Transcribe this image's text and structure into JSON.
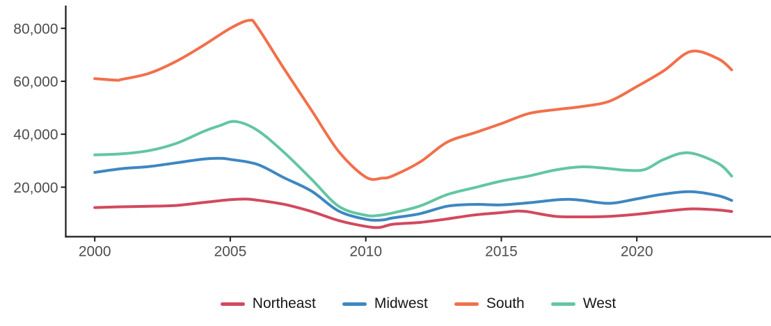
{
  "chart_data": {
    "type": "line",
    "title": "",
    "xlabel": "",
    "ylabel": "",
    "grid": false,
    "legend_position": "bottom",
    "xlim": [
      1998.93,
      2024.95
    ],
    "ylim": [
      1310,
      88590
    ],
    "x_ticks": {
      "values": [
        2000,
        2005,
        2010,
        2015,
        2020
      ],
      "labels": [
        "2000",
        "2005",
        "2010",
        "2015",
        "2020"
      ]
    },
    "y_ticks": {
      "values": [
        20000,
        40000,
        60000,
        80000
      ],
      "labels": [
        "20,000",
        "40,000",
        "60,000",
        "80,000"
      ]
    },
    "axis_color": "#1a1a1a",
    "tick_label_color": "#4d4d4d",
    "series": [
      {
        "name": "Northeast",
        "color": "#d2495e",
        "points": [
          [
            2000,
            12300
          ],
          [
            2001,
            12600
          ],
          [
            2002,
            12800
          ],
          [
            2003,
            13100
          ],
          [
            2004,
            14200
          ],
          [
            2005,
            15300
          ],
          [
            2005.6,
            15500
          ],
          [
            2006,
            15100
          ],
          [
            2007,
            13500
          ],
          [
            2008,
            10800
          ],
          [
            2009,
            7400
          ],
          [
            2010,
            5200
          ],
          [
            2010.5,
            4800
          ],
          [
            2011,
            6000
          ],
          [
            2012,
            6700
          ],
          [
            2013,
            8000
          ],
          [
            2014,
            9500
          ],
          [
            2015,
            10400
          ],
          [
            2015.6,
            11000
          ],
          [
            2016,
            10700
          ],
          [
            2017,
            9000
          ],
          [
            2018,
            8800
          ],
          [
            2019,
            9000
          ],
          [
            2020,
            9800
          ],
          [
            2021,
            10900
          ],
          [
            2022,
            11800
          ],
          [
            2023,
            11400
          ],
          [
            2023.5,
            10800
          ]
        ]
      },
      {
        "name": "Midwest",
        "color": "#3d87c1",
        "points": [
          [
            2000,
            25600
          ],
          [
            2001,
            27000
          ],
          [
            2002,
            27800
          ],
          [
            2003,
            29200
          ],
          [
            2004,
            30600
          ],
          [
            2004.6,
            30900
          ],
          [
            2005,
            30500
          ],
          [
            2006,
            28600
          ],
          [
            2007,
            23500
          ],
          [
            2008,
            18500
          ],
          [
            2009,
            11000
          ],
          [
            2010,
            7900
          ],
          [
            2010.6,
            7600
          ],
          [
            2011,
            8400
          ],
          [
            2012,
            10000
          ],
          [
            2013,
            12800
          ],
          [
            2014,
            13500
          ],
          [
            2015,
            13300
          ],
          [
            2016,
            14100
          ],
          [
            2017,
            15200
          ],
          [
            2017.5,
            15400
          ],
          [
            2018,
            15000
          ],
          [
            2019,
            13900
          ],
          [
            2020,
            15600
          ],
          [
            2021,
            17400
          ],
          [
            2022,
            18300
          ],
          [
            2023,
            16800
          ],
          [
            2023.5,
            15000
          ]
        ]
      },
      {
        "name": "South",
        "color": "#f1704a",
        "points": [
          [
            2000,
            61000
          ],
          [
            2000.8,
            60400
          ],
          [
            2001,
            60700
          ],
          [
            2002,
            63000
          ],
          [
            2003,
            67500
          ],
          [
            2004,
            73500
          ],
          [
            2005,
            80000
          ],
          [
            2005.7,
            83000
          ],
          [
            2006,
            80500
          ],
          [
            2007,
            64500
          ],
          [
            2008,
            49000
          ],
          [
            2009,
            33500
          ],
          [
            2010,
            23800
          ],
          [
            2010.6,
            23400
          ],
          [
            2011,
            24300
          ],
          [
            2012,
            29500
          ],
          [
            2013,
            37000
          ],
          [
            2014,
            40500
          ],
          [
            2015,
            44000
          ],
          [
            2016,
            47800
          ],
          [
            2017,
            49300
          ],
          [
            2018,
            50500
          ],
          [
            2019,
            52500
          ],
          [
            2020,
            58000
          ],
          [
            2021,
            64000
          ],
          [
            2022,
            71300
          ],
          [
            2023,
            68500
          ],
          [
            2023.5,
            64300
          ]
        ]
      },
      {
        "name": "West",
        "color": "#63c6a2",
        "points": [
          [
            2000,
            32200
          ],
          [
            2001,
            32600
          ],
          [
            2002,
            33800
          ],
          [
            2003,
            36500
          ],
          [
            2004,
            41000
          ],
          [
            2004.6,
            43200
          ],
          [
            2005.2,
            44800
          ],
          [
            2006,
            41500
          ],
          [
            2007,
            33000
          ],
          [
            2008,
            23000
          ],
          [
            2009,
            12800
          ],
          [
            2010,
            9400
          ],
          [
            2010.5,
            9400
          ],
          [
            2011,
            10300
          ],
          [
            2012,
            12900
          ],
          [
            2013,
            17200
          ],
          [
            2014,
            19800
          ],
          [
            2015,
            22300
          ],
          [
            2016,
            24200
          ],
          [
            2017,
            26500
          ],
          [
            2018,
            27700
          ],
          [
            2019,
            27000
          ],
          [
            2019.6,
            26400
          ],
          [
            2020.3,
            26700
          ],
          [
            2021,
            30500
          ],
          [
            2021.9,
            33000
          ],
          [
            2023,
            29000
          ],
          [
            2023.5,
            24200
          ]
        ]
      }
    ]
  }
}
